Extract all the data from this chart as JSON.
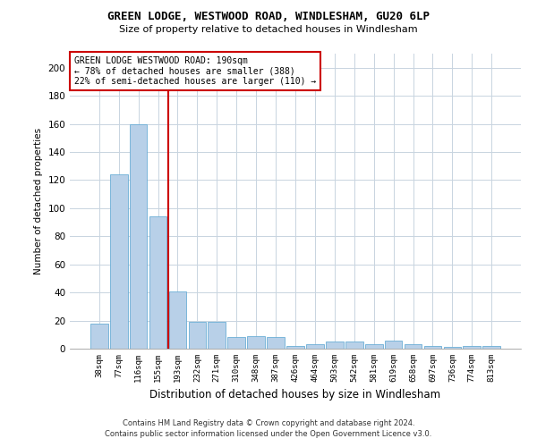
{
  "title1": "GREEN LODGE, WESTWOOD ROAD, WINDLESHAM, GU20 6LP",
  "title2": "Size of property relative to detached houses in Windlesham",
  "xlabel": "Distribution of detached houses by size in Windlesham",
  "ylabel": "Number of detached properties",
  "footnote1": "Contains HM Land Registry data © Crown copyright and database right 2024.",
  "footnote2": "Contains public sector information licensed under the Open Government Licence v3.0.",
  "categories": [
    "38sqm",
    "77sqm",
    "116sqm",
    "155sqm",
    "193sqm",
    "232sqm",
    "271sqm",
    "310sqm",
    "348sqm",
    "387sqm",
    "426sqm",
    "464sqm",
    "503sqm",
    "542sqm",
    "581sqm",
    "619sqm",
    "658sqm",
    "697sqm",
    "736sqm",
    "774sqm",
    "813sqm"
  ],
  "values": [
    18,
    124,
    160,
    94,
    41,
    19,
    19,
    8,
    9,
    8,
    2,
    3,
    5,
    5,
    3,
    6,
    3,
    2,
    1,
    2,
    2
  ],
  "bar_color": "#b8d0e8",
  "bar_edge_color": "#6baed6",
  "vline_color": "#cc0000",
  "annotation_text": "GREEN LODGE WESTWOOD ROAD: 190sqm\n← 78% of detached houses are smaller (388)\n22% of semi-detached houses are larger (110) →",
  "annotation_box_color": "#ffffff",
  "annotation_box_edge": "#cc0000",
  "ylim": [
    0,
    210
  ],
  "yticks": [
    0,
    20,
    40,
    60,
    80,
    100,
    120,
    140,
    160,
    180,
    200
  ],
  "background_color": "#ffffff",
  "grid_color": "#c8d4e0"
}
